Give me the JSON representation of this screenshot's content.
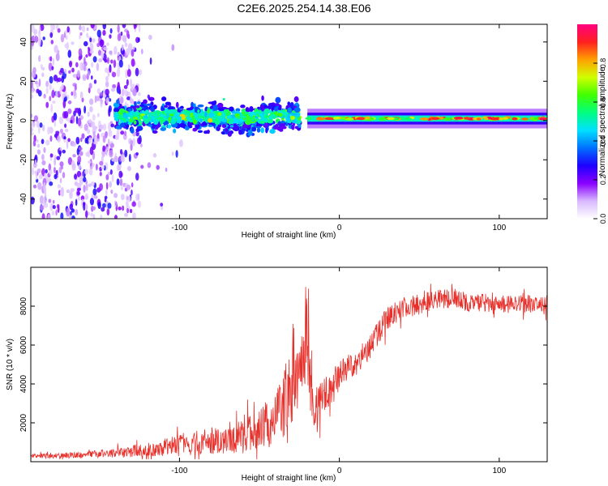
{
  "title": "C2E6.2025.254.14.38.E06",
  "colors": {
    "snr_line": "#e8302b",
    "background": "#ffffff",
    "axis": "#000000"
  },
  "chart_data": [
    {
      "type": "heatmap",
      "name": "spectrogram",
      "xlabel": "Height of straight line (km)",
      "ylabel": "Frequency (Hz)",
      "xlim": [
        -193,
        130
      ],
      "ylim": [
        -50,
        49
      ],
      "xticks": [
        -100,
        0,
        100
      ],
      "xtick_labels": [
        "-100",
        "0",
        "100"
      ],
      "yticks": [
        -40,
        -20,
        0,
        20,
        40
      ],
      "ytick_labels": [
        "-40",
        "-20",
        "0",
        "20",
        "40"
      ],
      "colorbar": {
        "label": "Normalized spectral amplitude",
        "range": [
          0.0,
          1.0
        ],
        "ticks": [
          0.0,
          0.2,
          0.4,
          0.6,
          0.8
        ],
        "tick_labels": [
          "0.0",
          "0.2",
          "0.4",
          "0.6",
          "0.8"
        ],
        "colormap": [
          "#ffffff",
          "#d8b8ff",
          "#8a00ff",
          "#1d00ff",
          "#0070ff",
          "#00e0ff",
          "#00ff80",
          "#40ff00",
          "#d0ff00",
          "#ffa000",
          "#ff2020",
          "#ff0080"
        ]
      },
      "band_summary": [
        {
          "x_range": [
            -193,
            -125
          ],
          "description": "scattered noise",
          "amplitude": 0.15
        },
        {
          "x_range": [
            -140,
            -25
          ],
          "center_hz": 2,
          "spread_hz": 6,
          "amplitude": 0.35
        },
        {
          "x_range": [
            -20,
            130
          ],
          "center_hz": 1,
          "spread_hz": 2,
          "amplitude": 0.55
        }
      ]
    },
    {
      "type": "line",
      "name": "snr",
      "xlabel": "Height of straight line (km)",
      "ylabel": "SNR (10 * v/v)",
      "xlim": [
        -193,
        130
      ],
      "ylim": [
        0,
        10000
      ],
      "xticks": [
        -100,
        0,
        100
      ],
      "xtick_labels": [
        "-100",
        "0",
        "100"
      ],
      "yticks": [
        2000,
        4000,
        6000,
        8000
      ],
      "ytick_labels": [
        "2000",
        "4000",
        "6000",
        "8000"
      ],
      "series": [
        {
          "name": "SNR",
          "x": [
            -193,
            -180,
            -160,
            -140,
            -120,
            -100,
            -80,
            -60,
            -50,
            -40,
            -35,
            -30,
            -25,
            -22,
            -20,
            -18,
            -15,
            -10,
            -5,
            0,
            5,
            10,
            15,
            20,
            25,
            30,
            40,
            50,
            60,
            70,
            80,
            90,
            100,
            110,
            120,
            130
          ],
          "y": [
            300,
            300,
            350,
            450,
            600,
            900,
            1100,
            1300,
            1600,
            2200,
            3000,
            3800,
            4300,
            5500,
            7000,
            3200,
            2600,
            3200,
            3800,
            4500,
            4900,
            5000,
            5500,
            6000,
            6700,
            7400,
            7900,
            8100,
            8300,
            8400,
            8200,
            8200,
            8100,
            8100,
            8100,
            8100
          ],
          "noise": [
            150,
            150,
            200,
            300,
            450,
            700,
            900,
            1100,
            1400,
            1800,
            2200,
            2500,
            2600,
            2700,
            2800,
            2000,
            1500,
            1300,
            1000,
            900,
            850,
            800,
            800,
            800,
            800,
            750,
            700,
            650,
            650,
            650,
            600,
            600,
            600,
            550,
            550,
            550
          ]
        }
      ]
    }
  ]
}
